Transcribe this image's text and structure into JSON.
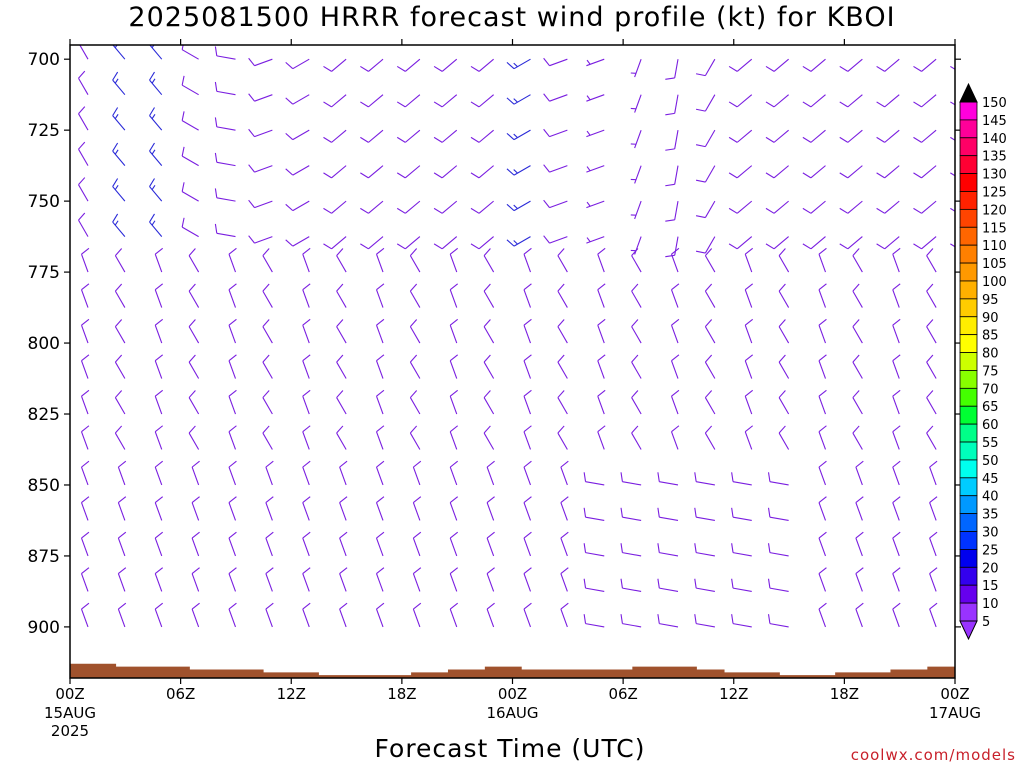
{
  "title": "2025081500 HRRR forecast wind profile (kt) for KBOI",
  "xlabel": "Forecast Time (UTC)",
  "credit": "coolwx.com/models",
  "colors": {
    "ground": "#a0522d",
    "barb_slow": "#7a1ee0",
    "barb_mid": "#2a2ad8"
  },
  "chart_data": {
    "type": "wind-barb-time-height",
    "title": "2025081500 HRRR forecast wind profile (kt) for KBOI",
    "xlabel": "Forecast Time (UTC)",
    "ylabel": "",
    "y_axis": {
      "ticks": [
        700,
        725,
        750,
        775,
        800,
        825,
        850,
        875,
        900
      ],
      "range": [
        695,
        918
      ],
      "inverted": true
    },
    "x_axis": {
      "range_hours": [
        0,
        48
      ],
      "ticks": [
        {
          "hour": 0,
          "label": "00Z",
          "sub": [
            "15AUG",
            "2025"
          ]
        },
        {
          "hour": 6,
          "label": "06Z",
          "sub": []
        },
        {
          "hour": 12,
          "label": "12Z",
          "sub": []
        },
        {
          "hour": 18,
          "label": "18Z",
          "sub": []
        },
        {
          "hour": 24,
          "label": "00Z",
          "sub": [
            "16AUG"
          ]
        },
        {
          "hour": 30,
          "label": "06Z",
          "sub": []
        },
        {
          "hour": 36,
          "label": "12Z",
          "sub": []
        },
        {
          "hour": 42,
          "label": "18Z",
          "sub": []
        },
        {
          "hour": 48,
          "label": "00Z",
          "sub": [
            "17AUG"
          ]
        }
      ]
    },
    "surface_pressure_mb": [
      {
        "hour": 0,
        "p": 913
      },
      {
        "hour": 2.5,
        "p": 914
      },
      {
        "hour": 6.5,
        "p": 915
      },
      {
        "hour": 10.5,
        "p": 916
      },
      {
        "hour": 13.5,
        "p": 917
      },
      {
        "hour": 18.5,
        "p": 916
      },
      {
        "hour": 20.5,
        "p": 915
      },
      {
        "hour": 22.5,
        "p": 914
      },
      {
        "hour": 24.5,
        "p": 915
      },
      {
        "hour": 28.5,
        "p": 915
      },
      {
        "hour": 30.5,
        "p": 914
      },
      {
        "hour": 34,
        "p": 915
      },
      {
        "hour": 35.5,
        "p": 916
      },
      {
        "hour": 38.5,
        "p": 917
      },
      {
        "hour": 41.5,
        "p": 916
      },
      {
        "hour": 44.5,
        "p": 915
      },
      {
        "hour": 46.5,
        "p": 914
      },
      {
        "hour": 48,
        "p": 914
      }
    ],
    "colorbar": {
      "levels": [
        150,
        145,
        140,
        135,
        130,
        125,
        120,
        115,
        110,
        105,
        100,
        95,
        90,
        85,
        80,
        75,
        70,
        65,
        60,
        55,
        50,
        45,
        40,
        35,
        30,
        25,
        20,
        15,
        10,
        5
      ],
      "colors": [
        "#ff00ff",
        "#ff00dd",
        "#ff0099",
        "#ff0066",
        "#ff0033",
        "#ff0000",
        "#ff2200",
        "#ff4400",
        "#ff6600",
        "#ff8000",
        "#ff9900",
        "#ffb000",
        "#ffcc00",
        "#ffee00",
        "#ffff00",
        "#ccff00",
        "#88ff00",
        "#44ff00",
        "#00ff33",
        "#00ff88",
        "#00ffbb",
        "#00ffee",
        "#00ccff",
        "#0099ff",
        "#0066ff",
        "#0033ff",
        "#0000ee",
        "#3300ee",
        "#6600ee",
        "#9933ff"
      ]
    },
    "barb_grid": {
      "hour_step": 2,
      "pressure_levels": [
        700,
        712.5,
        725,
        737.5,
        750,
        762.5,
        775,
        787.5,
        800,
        812.5,
        825,
        837.5,
        850,
        862.5,
        875,
        887.5,
        900
      ],
      "columns": [
        {
          "hour": 0,
          "dir": 330,
          "spd": 10
        },
        {
          "hour": 2,
          "dir": 320,
          "spd": 15
        },
        {
          "hour": 4,
          "dir": 320,
          "spd": 15
        },
        {
          "hour": 6,
          "dir": 300,
          "spd": 10
        },
        {
          "hour": 8,
          "dir": 280,
          "spd": 10
        },
        {
          "hour": 10,
          "dir": 250,
          "spd": 10
        },
        {
          "hour": 12,
          "dir": 240,
          "spd": 10
        },
        {
          "hour": 14,
          "dir": 230,
          "spd": 10
        },
        {
          "hour": 16,
          "dir": 230,
          "spd": 10
        },
        {
          "hour": 18,
          "dir": 230,
          "spd": 10
        },
        {
          "hour": 20,
          "dir": 230,
          "spd": 10
        },
        {
          "hour": 22,
          "dir": 230,
          "spd": 10
        },
        {
          "hour": 24,
          "dir": 240,
          "spd": 15
        },
        {
          "hour": 26,
          "dir": 250,
          "spd": 10
        },
        {
          "hour": 28,
          "dir": 250,
          "spd": 5
        },
        {
          "hour": 30,
          "dir": 200,
          "spd": 5
        },
        {
          "hour": 32,
          "dir": 190,
          "spd": 10
        },
        {
          "hour": 34,
          "dir": 210,
          "spd": 10
        },
        {
          "hour": 36,
          "dir": 230,
          "spd": 10
        },
        {
          "hour": 38,
          "dir": 230,
          "spd": 10
        },
        {
          "hour": 40,
          "dir": 230,
          "spd": 10
        },
        {
          "hour": 42,
          "dir": 230,
          "spd": 10
        },
        {
          "hour": 44,
          "dir": 230,
          "spd": 10
        },
        {
          "hour": 46,
          "dir": 230,
          "spd": 10
        },
        {
          "hour": 48,
          "dir": 230,
          "spd": 10
        }
      ],
      "low_level_dir": 340,
      "low_level_spd": 10
    }
  }
}
